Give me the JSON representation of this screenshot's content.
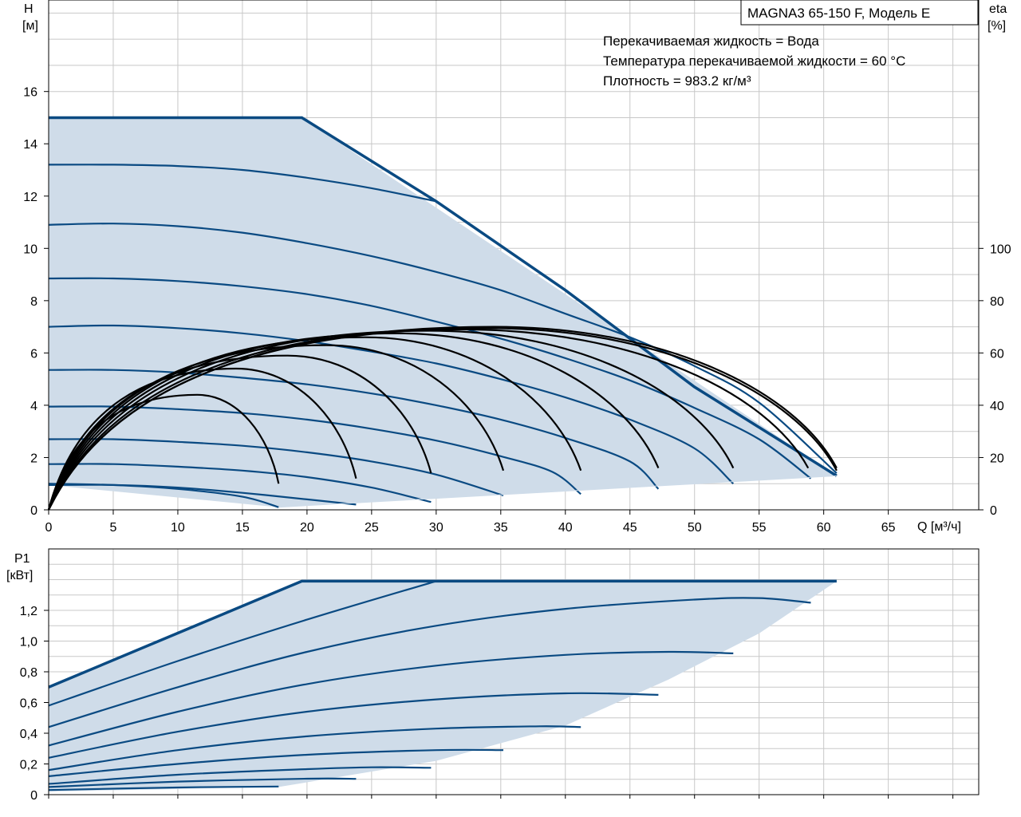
{
  "head_chart": {
    "model_label": "MAGNA3 65-150 F, Модель E",
    "notes": [
      "Перекачиваемая жидкость = Вода",
      "Температура перекачиваемой жидкости = 60 °C",
      "Плотность = 983.2 кг/м³"
    ]
  },
  "chart_data": [
    {
      "type": "line",
      "xlabel": "Q [м³/ч]",
      "ylabel": [
        "H",
        "[м]"
      ],
      "y2label": [
        "eta",
        "[%]"
      ],
      "xlim": [
        0,
        72
      ],
      "ylim": [
        0,
        19.5
      ],
      "y2lim": [
        0,
        195
      ],
      "x_ticks": [
        0,
        5,
        10,
        15,
        20,
        25,
        30,
        35,
        40,
        45,
        50,
        55,
        60,
        65
      ],
      "y_ticks": [
        0,
        2,
        4,
        6,
        8,
        10,
        12,
        14,
        16
      ],
      "y2_ticks": [
        0,
        20,
        40,
        60,
        80,
        100
      ],
      "grid": true,
      "colors": {
        "curve": "#0a4a82",
        "fill": "#cfdce9",
        "eta": "#000000"
      },
      "envelope": [
        [
          0,
          15.0
        ],
        [
          19.6,
          15.0
        ],
        [
          61,
          1.3
        ],
        [
          17.8,
          0.1
        ],
        [
          0,
          0.95
        ]
      ],
      "max_curve": [
        [
          0,
          15.0
        ],
        [
          19.6,
          15.0
        ],
        [
          30,
          11.8
        ],
        [
          40,
          8.4
        ],
        [
          50,
          4.7
        ],
        [
          61,
          1.3
        ]
      ],
      "head_curves": [
        {
          "points": [
            [
              0,
              13.2
            ],
            [
              5,
              13.2
            ],
            [
              10,
              13.15
            ],
            [
              15,
              13.0
            ],
            [
              20,
              12.7
            ],
            [
              25,
              12.3
            ],
            [
              30,
              11.8
            ]
          ]
        },
        {
          "points": [
            [
              0,
              10.9
            ],
            [
              5,
              10.95
            ],
            [
              10,
              10.85
            ],
            [
              15,
              10.6
            ],
            [
              20,
              10.2
            ],
            [
              25,
              9.7
            ],
            [
              30,
              9.1
            ],
            [
              35,
              8.4
            ],
            [
              40,
              7.5
            ],
            [
              45,
              6.6
            ],
            [
              50,
              5.5
            ],
            [
              55,
              4.1
            ],
            [
              61,
              1.4
            ]
          ]
        },
        {
          "points": [
            [
              0,
              8.85
            ],
            [
              5,
              8.85
            ],
            [
              10,
              8.75
            ],
            [
              15,
              8.55
            ],
            [
              20,
              8.25
            ],
            [
              25,
              7.8
            ],
            [
              30,
              7.2
            ],
            [
              35,
              6.55
            ],
            [
              40,
              5.8
            ],
            [
              45,
              4.95
            ],
            [
              50,
              3.9
            ],
            [
              55,
              2.7
            ],
            [
              59,
              1.2
            ]
          ]
        },
        {
          "points": [
            [
              0,
              7.0
            ],
            [
              5,
              7.05
            ],
            [
              10,
              6.95
            ],
            [
              15,
              6.75
            ],
            [
              20,
              6.45
            ],
            [
              25,
              6.05
            ],
            [
              30,
              5.6
            ],
            [
              35,
              5.0
            ],
            [
              40,
              4.3
            ],
            [
              45,
              3.45
            ],
            [
              50,
              2.35
            ],
            [
              53,
              1.0
            ]
          ]
        },
        {
          "points": [
            [
              0,
              5.35
            ],
            [
              5,
              5.35
            ],
            [
              10,
              5.25
            ],
            [
              15,
              5.05
            ],
            [
              20,
              4.8
            ],
            [
              25,
              4.45
            ],
            [
              30,
              4.0
            ],
            [
              35,
              3.45
            ],
            [
              40,
              2.75
            ],
            [
              45,
              1.85
            ],
            [
              47.2,
              0.8
            ]
          ]
        },
        {
          "points": [
            [
              0,
              3.95
            ],
            [
              5,
              3.95
            ],
            [
              10,
              3.85
            ],
            [
              15,
              3.7
            ],
            [
              20,
              3.45
            ],
            [
              25,
              3.1
            ],
            [
              30,
              2.65
            ],
            [
              35,
              2.05
            ],
            [
              39,
              1.45
            ],
            [
              41.2,
              0.6
            ]
          ]
        },
        {
          "points": [
            [
              0,
              2.7
            ],
            [
              5,
              2.7
            ],
            [
              10,
              2.6
            ],
            [
              15,
              2.45
            ],
            [
              20,
              2.2
            ],
            [
              25,
              1.85
            ],
            [
              30,
              1.35
            ],
            [
              35.2,
              0.55
            ]
          ]
        },
        {
          "points": [
            [
              0,
              1.75
            ],
            [
              5,
              1.75
            ],
            [
              10,
              1.65
            ],
            [
              15,
              1.5
            ],
            [
              20,
              1.25
            ],
            [
              25,
              0.85
            ],
            [
              29.6,
              0.3
            ]
          ]
        },
        {
          "points": [
            [
              0,
              0.95
            ],
            [
              5,
              0.95
            ],
            [
              10,
              0.85
            ],
            [
              15,
              0.65
            ],
            [
              20,
              0.4
            ],
            [
              23.8,
              0.2
            ]
          ]
        },
        {
          "points": [
            [
              0,
              1.0
            ],
            [
              5,
              0.95
            ],
            [
              10,
              0.8
            ],
            [
              15,
              0.5
            ],
            [
              17.8,
              0.1
            ]
          ]
        }
      ],
      "eta_curves": [
        {
          "end": [
            17.8,
            10
          ],
          "peak": [
            11.5,
            44
          ]
        },
        {
          "end": [
            23.8,
            12
          ],
          "peak": [
            14.5,
            54
          ]
        },
        {
          "end": [
            29.6,
            14
          ],
          "peak": [
            18.5,
            59
          ]
        },
        {
          "end": [
            35.2,
            15
          ],
          "peak": [
            21.5,
            63
          ]
        },
        {
          "end": [
            41.2,
            15
          ],
          "peak": [
            24.5,
            66
          ]
        },
        {
          "end": [
            47.2,
            16
          ],
          "peak": [
            27.0,
            67.5
          ]
        },
        {
          "end": [
            53.0,
            16
          ],
          "peak": [
            29.5,
            68.5
          ]
        },
        {
          "end": [
            58.8,
            16
          ],
          "peak": [
            32.0,
            69
          ]
        },
        {
          "end": [
            61.0,
            15
          ],
          "peak": [
            34.0,
            69.5
          ]
        },
        {
          "end": [
            61.0,
            16
          ],
          "peak": [
            34.5,
            70
          ]
        }
      ]
    },
    {
      "type": "line",
      "ylabel": [
        "P1",
        "[кВт]"
      ],
      "xlim": [
        0,
        72
      ],
      "ylim": [
        0,
        1.6
      ],
      "y_ticks": [
        0,
        0.2,
        0.4,
        0.6,
        0.8,
        1.0,
        1.2
      ],
      "y_tick_labels": [
        "0",
        "0,2",
        "0,4",
        "0,6",
        "0,8",
        "1,0",
        "1,2"
      ],
      "grid": true,
      "envelope": [
        [
          0,
          0.7
        ],
        [
          19.6,
          1.39
        ],
        [
          61,
          1.39
        ],
        [
          55,
          1.05
        ],
        [
          48,
          0.75
        ],
        [
          40,
          0.45
        ],
        [
          30,
          0.22
        ],
        [
          17.8,
          0.05
        ],
        [
          0,
          0.02
        ]
      ],
      "max_curve": [
        [
          0,
          0.7
        ],
        [
          19.6,
          1.39
        ],
        [
          61,
          1.39
        ]
      ],
      "power_curves": [
        {
          "points": [
            [
              0,
              0.58
            ],
            [
              10,
              0.87
            ],
            [
              20,
              1.14
            ],
            [
              30,
              1.39
            ]
          ]
        },
        {
          "points": [
            [
              0,
              0.44
            ],
            [
              10,
              0.7
            ],
            [
              20,
              0.93
            ],
            [
              30,
              1.1
            ],
            [
              40,
              1.21
            ],
            [
              50,
              1.27
            ],
            [
              55,
              1.28
            ],
            [
              59,
              1.25
            ]
          ]
        },
        {
          "points": [
            [
              0,
              0.32
            ],
            [
              10,
              0.54
            ],
            [
              20,
              0.72
            ],
            [
              30,
              0.84
            ],
            [
              40,
              0.91
            ],
            [
              48,
              0.93
            ],
            [
              53,
              0.92
            ]
          ]
        },
        {
          "points": [
            [
              0,
              0.24
            ],
            [
              10,
              0.41
            ],
            [
              20,
              0.54
            ],
            [
              30,
              0.62
            ],
            [
              40,
              0.66
            ],
            [
              47.2,
              0.65
            ]
          ]
        },
        {
          "points": [
            [
              0,
              0.16
            ],
            [
              10,
              0.29
            ],
            [
              20,
              0.38
            ],
            [
              30,
              0.43
            ],
            [
              38,
              0.445
            ],
            [
              41.2,
              0.44
            ]
          ]
        },
        {
          "points": [
            [
              0,
              0.12
            ],
            [
              10,
              0.2
            ],
            [
              20,
              0.26
            ],
            [
              30,
              0.29
            ],
            [
              35.2,
              0.29
            ]
          ]
        },
        {
          "points": [
            [
              0,
              0.07
            ],
            [
              10,
              0.13
            ],
            [
              20,
              0.166
            ],
            [
              25,
              0.178
            ],
            [
              29.6,
              0.175
            ]
          ]
        },
        {
          "points": [
            [
              0,
              0.05
            ],
            [
              10,
              0.085
            ],
            [
              20,
              0.104
            ],
            [
              23.8,
              0.103
            ]
          ]
        },
        {
          "points": [
            [
              0,
              0.03
            ],
            [
              10,
              0.047
            ],
            [
              17.8,
              0.053
            ]
          ]
        }
      ]
    }
  ]
}
